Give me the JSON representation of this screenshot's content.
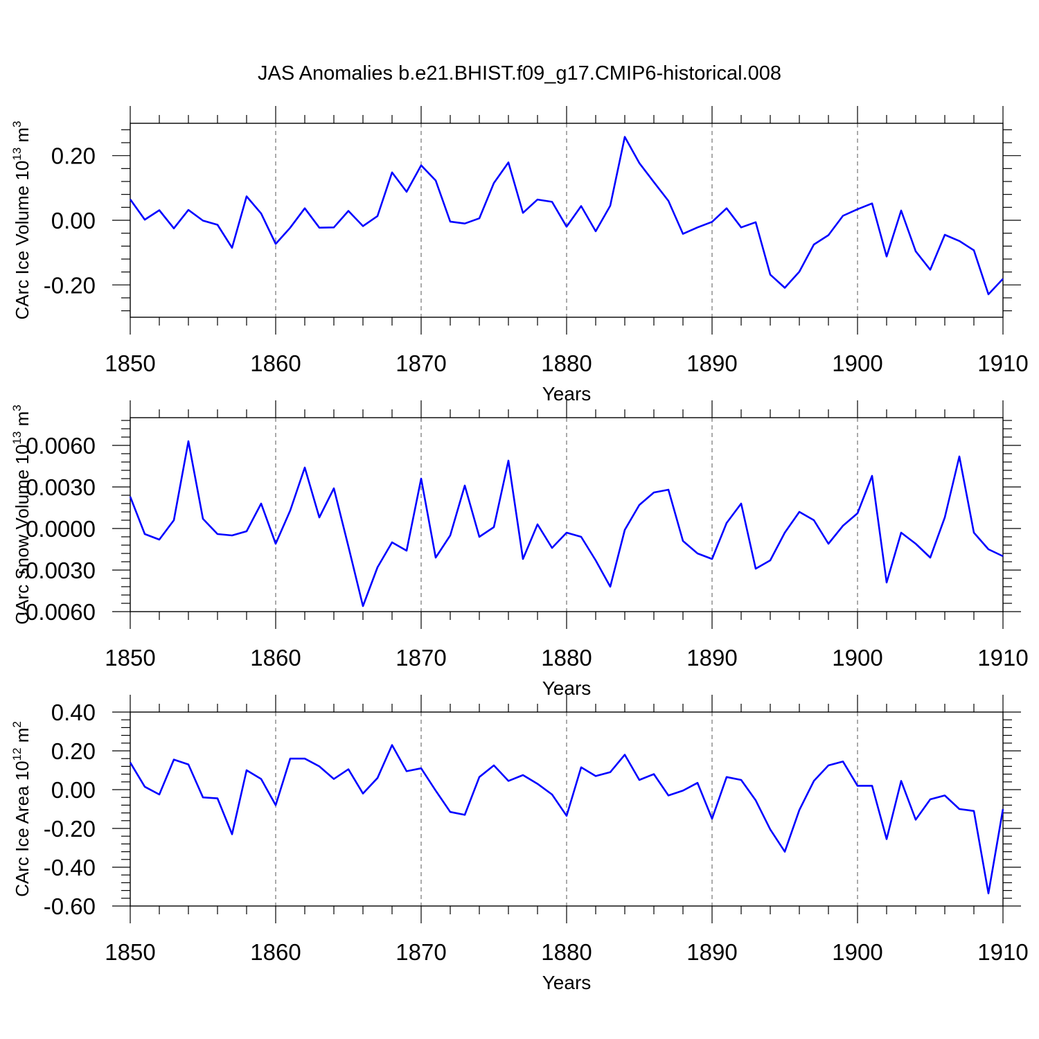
{
  "title": "JAS Anomalies b.e21.BHIST.f09_g17.CMIP6-historical.008",
  "colors": {
    "line": "#0000ff",
    "axis": "#000000",
    "grid": "#555555"
  },
  "chart_data": [
    {
      "type": "line",
      "ylabel": "CArc Ice Volume 10",
      "ylabel_exp": "13",
      "ylabel_unit": " m",
      "ylabel_unit_exp": "3",
      "xlabel": "Years",
      "xlim": [
        1850,
        1910
      ],
      "ylim": [
        -0.3,
        0.3
      ],
      "xticks": [
        1850,
        1860,
        1870,
        1880,
        1890,
        1900,
        1910
      ],
      "xtick_labels": [
        "1850",
        "1860",
        "1870",
        "1880",
        "1890",
        "1900",
        "1910"
      ],
      "yticks": [
        0.2,
        0.0,
        -0.2
      ],
      "ytick_labels": [
        "0.20",
        "0.00",
        "-0.20"
      ],
      "grid_x": [
        1860,
        1870,
        1880,
        1890,
        1900
      ],
      "x_start": 1850,
      "series": [
        {
          "name": "CArc Ice Volume",
          "color": "#0000ff",
          "values": [
            0.065,
            0.002,
            0.031,
            -0.025,
            0.032,
            -0.001,
            -0.014,
            -0.085,
            0.074,
            0.021,
            -0.073,
            -0.023,
            0.037,
            -0.023,
            -0.022,
            0.029,
            -0.018,
            0.013,
            0.148,
            0.088,
            0.17,
            0.123,
            -0.004,
            -0.01,
            0.006,
            0.115,
            0.179,
            0.023,
            0.064,
            0.057,
            -0.02,
            0.044,
            -0.034,
            0.045,
            0.258,
            0.177,
            0.118,
            0.06,
            -0.042,
            -0.022,
            -0.005,
            0.037,
            -0.022,
            -0.006,
            -0.168,
            -0.209,
            -0.159,
            -0.075,
            -0.046,
            0.014,
            0.034,
            0.052,
            -0.112,
            0.03,
            -0.096,
            -0.153,
            -0.045,
            -0.064,
            -0.093,
            -0.229,
            -0.181
          ]
        }
      ]
    },
    {
      "type": "line",
      "ylabel": "CArc Snow Volume 10",
      "ylabel_exp": "13",
      "ylabel_unit": " m",
      "ylabel_unit_exp": "3",
      "xlabel": "Years",
      "xlim": [
        1850,
        1910
      ],
      "ylim": [
        -0.006,
        0.008
      ],
      "xticks": [
        1850,
        1860,
        1870,
        1880,
        1890,
        1900,
        1910
      ],
      "xtick_labels": [
        "1850",
        "1860",
        "1870",
        "1880",
        "1890",
        "1900",
        "1910"
      ],
      "yticks": [
        0.006,
        0.003,
        0.0,
        -0.003,
        -0.006
      ],
      "ytick_labels": [
        "0.0060",
        "0.0030",
        "0.0000",
        "-0.0030",
        "-0.0060"
      ],
      "grid_x": [
        1860,
        1870,
        1880,
        1890,
        1900
      ],
      "x_start": 1850,
      "series": [
        {
          "name": "CArc Snow Volume",
          "color": "#0000ff",
          "values": [
            0.0023,
            -0.0004,
            -0.0008,
            0.0006,
            0.0063,
            0.0007,
            -0.0004,
            -0.0005,
            -0.0002,
            0.0018,
            -0.0011,
            0.0013,
            0.0044,
            0.0008,
            0.0029,
            -0.0013,
            -0.0056,
            -0.0028,
            -0.001,
            -0.0016,
            0.0036,
            -0.0021,
            -0.0005,
            0.0031,
            -0.0006,
            0.0001,
            0.0049,
            -0.0022,
            0.0003,
            -0.0014,
            -0.0003,
            -0.0006,
            -0.0023,
            -0.0042,
            -0.0001,
            0.0017,
            0.0026,
            0.0028,
            -0.0009,
            -0.0018,
            -0.0022,
            0.0004,
            0.0018,
            -0.0029,
            -0.0023,
            -0.0003,
            0.0012,
            0.0006,
            -0.0011,
            0.0002,
            0.0011,
            0.0038,
            -0.0039,
            -0.0003,
            -0.0011,
            -0.0021,
            0.0008,
            0.0052,
            -0.0003,
            -0.0015,
            -0.002
          ]
        }
      ]
    },
    {
      "type": "line",
      "ylabel": "CArc Ice Area 10",
      "ylabel_exp": "12",
      "ylabel_unit": " m",
      "ylabel_unit_exp": "2",
      "xlabel": "Years",
      "xlim": [
        1850,
        1910
      ],
      "ylim": [
        -0.6,
        0.4
      ],
      "xticks": [
        1850,
        1860,
        1870,
        1880,
        1890,
        1900,
        1910
      ],
      "xtick_labels": [
        "1850",
        "1860",
        "1870",
        "1880",
        "1890",
        "1900",
        "1910"
      ],
      "yticks": [
        0.4,
        0.2,
        0.0,
        -0.2,
        -0.4,
        -0.6
      ],
      "ytick_labels": [
        "0.40",
        "0.20",
        "0.00",
        "-0.20",
        "-0.40",
        "-0.60"
      ],
      "grid_x": [
        1860,
        1870,
        1880,
        1890,
        1900
      ],
      "x_start": 1850,
      "series": [
        {
          "name": "CArc Ice Area",
          "color": "#0000ff",
          "values": [
            0.14,
            0.015,
            -0.025,
            0.155,
            0.13,
            -0.04,
            -0.045,
            -0.23,
            0.1,
            0.055,
            -0.08,
            0.16,
            0.16,
            0.12,
            0.055,
            0.105,
            -0.02,
            0.06,
            0.23,
            0.095,
            0.11,
            -0.005,
            -0.115,
            -0.13,
            0.065,
            0.125,
            0.045,
            0.075,
            0.03,
            -0.025,
            -0.135,
            0.115,
            0.07,
            0.09,
            0.18,
            0.05,
            0.08,
            -0.03,
            -0.005,
            0.035,
            -0.15,
            0.065,
            0.05,
            -0.055,
            -0.205,
            -0.32,
            -0.105,
            0.045,
            0.125,
            0.145,
            0.02,
            0.02,
            -0.255,
            0.045,
            -0.155,
            -0.05,
            -0.03,
            -0.1,
            -0.11,
            -0.535,
            -0.1
          ]
        }
      ]
    }
  ]
}
